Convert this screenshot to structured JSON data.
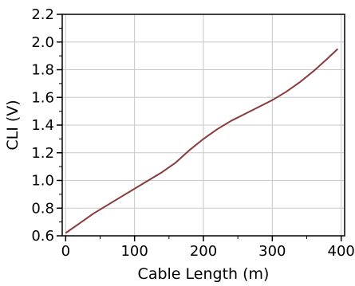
{
  "chart_data": {
    "type": "line",
    "title": "",
    "xlabel": "Cable Length (m)",
    "ylabel": "CLI (V)",
    "xlim": [
      -5,
      405
    ],
    "ylim": [
      0.6,
      2.2
    ],
    "x_ticks": [
      0,
      100,
      200,
      300,
      400
    ],
    "x_tick_labels": [
      "0",
      "100",
      "200",
      "300",
      "400"
    ],
    "y_ticks": [
      0.6,
      0.8,
      1.0,
      1.2,
      1.4,
      1.6,
      1.8,
      2.0,
      2.2
    ],
    "y_tick_labels": [
      "0.6",
      "0.8",
      "1.0",
      "1.2",
      "1.4",
      "1.6",
      "1.8",
      "2.0",
      "2.2"
    ],
    "grid": true,
    "legend": "none",
    "colors": {
      "line": "#8b3a3a",
      "grid": "#c8c8c8",
      "axis": "#000000"
    },
    "series": [
      {
        "x": [
          0,
          20,
          40,
          60,
          80,
          100,
          120,
          140,
          160,
          180,
          200,
          220,
          240,
          260,
          280,
          300,
          320,
          340,
          360,
          380,
          395
        ],
        "y": [
          0.62,
          0.69,
          0.76,
          0.82,
          0.88,
          0.94,
          1.0,
          1.06,
          1.13,
          1.22,
          1.3,
          1.37,
          1.43,
          1.48,
          1.53,
          1.58,
          1.64,
          1.71,
          1.79,
          1.88,
          1.95
        ]
      }
    ]
  }
}
